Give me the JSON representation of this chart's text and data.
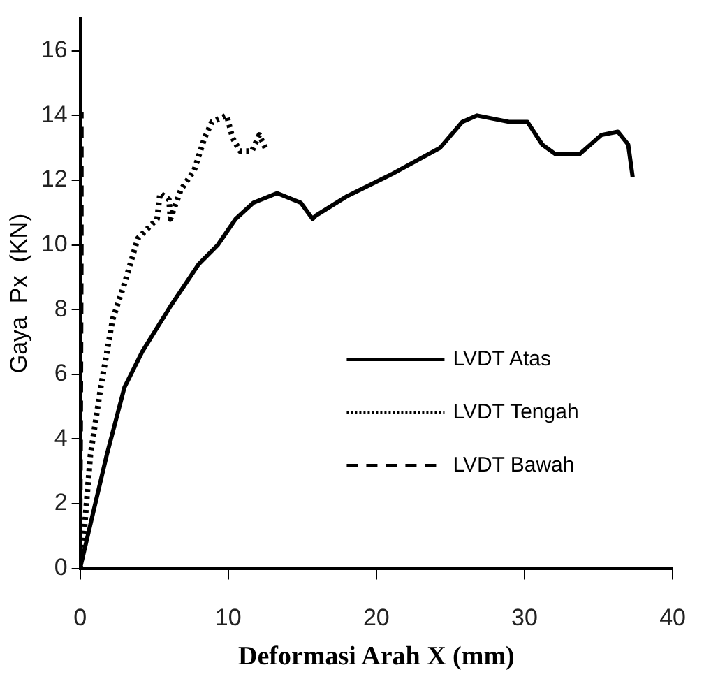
{
  "chart_data": {
    "type": "line",
    "xlabel": "Deformasi Arah X (mm)",
    "ylabel": "Gaya  Px  (KN)",
    "xlim": [
      0,
      40
    ],
    "xticks": [
      0,
      10,
      20,
      30,
      40
    ],
    "ylim": [
      0,
      17
    ],
    "yticks": [
      0,
      2,
      4,
      6,
      8,
      10,
      12,
      14,
      16
    ],
    "grid": false,
    "legend": "bottom right",
    "marker": "none",
    "series": [
      {
        "name": "LVDT Atas",
        "color": "#000000",
        "line_style": "solid",
        "x": [
          0,
          1.8,
          3.0,
          4.2,
          6.1,
          8.0,
          9.3,
          10.5,
          11.7,
          13.3,
          14.9,
          15.7,
          15.9,
          18.0,
          21.1,
          24.3,
          25.8,
          26.8,
          29.0,
          30.2,
          31.2,
          32.1,
          33.7,
          35.2,
          36.3,
          37.0,
          37.3
        ],
        "values": [
          0,
          3.5,
          5.6,
          6.7,
          8.1,
          9.4,
          10.0,
          10.8,
          11.3,
          11.6,
          11.3,
          10.8,
          10.9,
          11.5,
          12.2,
          13.0,
          13.8,
          14.0,
          13.8,
          13.8,
          13.1,
          12.8,
          12.8,
          13.4,
          13.5,
          13.1,
          12.1
        ]
      },
      {
        "name": "LVDT Tengah",
        "color": "#000000",
        "line_style": "dotted",
        "x": [
          0,
          0.2,
          0.7,
          1.4,
          2.2,
          3.0,
          3.9,
          5.2,
          5.4,
          6.0,
          6.1,
          6.8,
          7.7,
          8.4,
          8.9,
          9.9,
          10.3,
          10.8,
          11.6,
          12.1,
          12.6
        ],
        "values": [
          0,
          0.7,
          3.5,
          5.6,
          7.7,
          8.8,
          10.2,
          10.8,
          11.6,
          11.4,
          10.8,
          11.7,
          12.3,
          13.3,
          13.8,
          14.0,
          13.3,
          12.9,
          12.9,
          13.4,
          12.9
        ]
      },
      {
        "name": "LVDT Bawah",
        "color": "#000000",
        "line_style": "dashed",
        "x": [
          0,
          0.05,
          0.1,
          0.1
        ],
        "values": [
          0,
          4,
          10,
          14.1
        ]
      }
    ]
  }
}
